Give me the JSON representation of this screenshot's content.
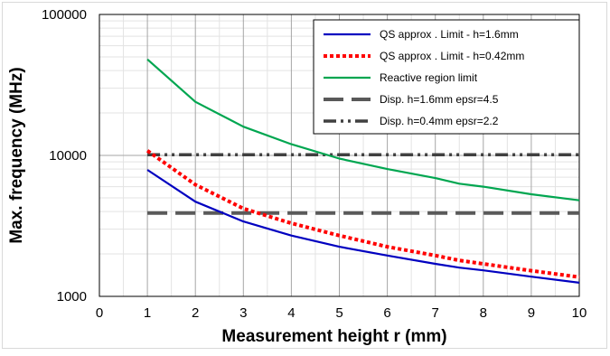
{
  "chart_data": {
    "type": "line",
    "title": "",
    "xlabel": "Measurement height r  (mm)",
    "ylabel": "Max. frequency (MHz)",
    "xlim": [
      0,
      10
    ],
    "ylim": [
      1000,
      100000
    ],
    "yscale": "log",
    "xticks": [
      "0",
      "1",
      "2",
      "3",
      "4",
      "5",
      "6",
      "7",
      "8",
      "9",
      "10"
    ],
    "yticks": [
      "1000",
      "10000",
      "100000"
    ],
    "grid": true,
    "legend_position": "top-right",
    "x": [
      1,
      2,
      3,
      4,
      5,
      6,
      7,
      7.5,
      8,
      9,
      10
    ],
    "series": [
      {
        "name": "QS approx . Limit - h=1.6mm",
        "color": "#0000c0",
        "line_style": "solid",
        "values": [
          7900,
          4700,
          3400,
          2700,
          2250,
          1950,
          1700,
          1600,
          1530,
          1380,
          1250
        ]
      },
      {
        "name": "QS approx . Limit - h=0.42mm",
        "color": "#ff0000",
        "line_style": "dotted-thick",
        "values": [
          10800,
          6200,
          4200,
          3300,
          2700,
          2250,
          1950,
          1800,
          1700,
          1520,
          1370
        ]
      },
      {
        "name": "Reactive region limit",
        "color": "#00a650",
        "line_style": "solid",
        "values": [
          48000,
          24000,
          16000,
          12000,
          9500,
          8000,
          6900,
          6300,
          6000,
          5300,
          4800
        ]
      },
      {
        "name": "Disp. h=1.6mm epsr=4.5",
        "color": "#595959",
        "line_style": "dashed",
        "values": [
          3900,
          3900,
          3900,
          3900,
          3900,
          3900,
          3900,
          3900,
          3900,
          3900,
          3900
        ]
      },
      {
        "name": "Disp. h=0.4mm epsr=2.2",
        "color": "#404040",
        "line_style": "dash-dot",
        "values": [
          10100,
          10100,
          10100,
          10100,
          10100,
          10100,
          10100,
          10100,
          10100,
          10100,
          10100
        ]
      }
    ]
  }
}
